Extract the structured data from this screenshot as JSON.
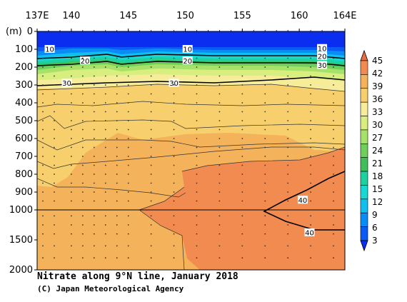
{
  "chart_data": {
    "type": "contour",
    "title": "Nitrate along 9°N line, January 2018",
    "credit": "(C) Japan Meteorological Agency",
    "x_tick_labels": [
      "137E",
      "140",
      "145",
      "150",
      "155",
      "160",
      "164E"
    ],
    "x_ticks": [
      137,
      140,
      145,
      150,
      155,
      160,
      164
    ],
    "xlim": [
      137,
      164
    ],
    "y_unit_label": "(m)",
    "y_ticks_upper": [
      0,
      100,
      200,
      300,
      400,
      500,
      600,
      700,
      800,
      900,
      1000
    ],
    "y_ticks_lower": [
      1500,
      2000
    ],
    "y_tick_labels": [
      "0",
      "100",
      "200",
      "300",
      "400",
      "500",
      "600",
      "700",
      "800",
      "900",
      "1000",
      "1500",
      "2000"
    ],
    "y_axis_break": 1000,
    "colorbar": {
      "levels": [
        3,
        6,
        9,
        12,
        15,
        18,
        21,
        24,
        27,
        30,
        33,
        36,
        39,
        42,
        45
      ],
      "colors": [
        "#0a2df0",
        "#0b5af5",
        "#0a8cf5",
        "#10bff0",
        "#18d8d2",
        "#1ecfa0",
        "#3fbf5a",
        "#6ed05a",
        "#a6e16a",
        "#d8ee7e",
        "#f6ec9a",
        "#f7cf6c",
        "#f4b25a",
        "#f28b50",
        "#ef6a40"
      ]
    },
    "contour_labels": [
      {
        "value": "10",
        "lon": 138.1,
        "depth": 100
      },
      {
        "value": "20",
        "lon": 141.2,
        "depth": 165
      },
      {
        "value": "30",
        "lon": 139.6,
        "depth": 290
      },
      {
        "value": "10",
        "lon": 150.2,
        "depth": 100
      },
      {
        "value": "20",
        "lon": 150.2,
        "depth": 165
      },
      {
        "value": "30",
        "lon": 149.0,
        "depth": 290
      },
      {
        "value": "10",
        "lon": 162.0,
        "depth": 95
      },
      {
        "value": "20",
        "lon": 162.0,
        "depth": 140
      },
      {
        "value": "30",
        "lon": 162.0,
        "depth": 190
      },
      {
        "value": "40",
        "lon": 160.3,
        "depth": 945
      },
      {
        "value": "40",
        "lon": 160.9,
        "depth": 1380
      }
    ]
  }
}
